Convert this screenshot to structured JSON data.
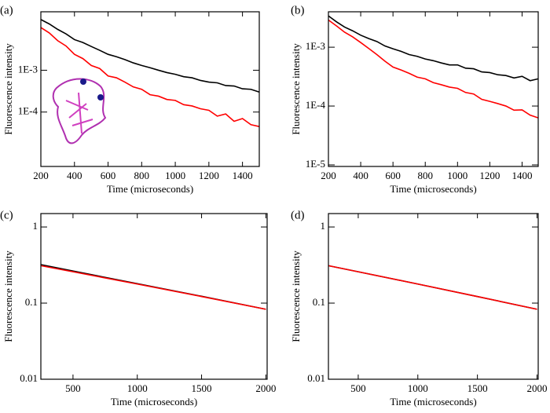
{
  "chart_data": [
    {
      "type": "line",
      "label": "(a)",
      "x_label": "Time (microseconds)",
      "y_label": "Fluorescence intensity",
      "log_y": true,
      "x": [
        200,
        250,
        300,
        350,
        400,
        450,
        500,
        550,
        600,
        650,
        700,
        750,
        800,
        850,
        900,
        950,
        1000,
        1050,
        1100,
        1150,
        1200,
        1250,
        1300,
        1350,
        1400,
        1450,
        1500
      ],
      "series": [
        {
          "color": "#000000",
          "values": [
            0.0163,
            0.0128,
            0.0095,
            0.0074,
            0.0054,
            0.0046,
            0.0037,
            0.003,
            0.0024,
            0.0021,
            0.0018,
            0.0015,
            0.0013,
            0.00115,
            0.001,
            0.00088,
            0.0008,
            0.0007,
            0.00066,
            0.00057,
            0.00052,
            0.0005,
            0.00043,
            0.00042,
            0.00036,
            0.00035,
            0.0003
          ]
        },
        {
          "color": "#ff0000",
          "values": [
            0.0105,
            0.0078,
            0.0051,
            0.0038,
            0.0024,
            0.0019,
            0.0013,
            0.0011,
            0.00073,
            0.00066,
            0.00052,
            0.0004,
            0.00035,
            0.00026,
            0.00024,
            0.0002,
            0.00019,
            0.00015,
            0.00014,
            0.00012,
            0.00011,
            8e-05,
            9e-05,
            6e-05,
            7e-05,
            5e-05,
            4.5e-05
          ]
        }
      ],
      "xlim": [
        200,
        1500
      ],
      "xticks": [
        200,
        400,
        600,
        800,
        1000,
        1200,
        1400
      ],
      "ylim": [
        5e-06,
        0.025
      ],
      "yticks": [
        {
          "value": 0.0001,
          "label": "1E-4"
        },
        {
          "value": 0.001,
          "label": "1E-3"
        }
      ]
    },
    {
      "type": "line",
      "label": "(b)",
      "x_label": "Time (microseconds)",
      "y_label": "Fluorescence intensity",
      "log_y": true,
      "x": [
        200,
        250,
        300,
        350,
        400,
        450,
        500,
        550,
        600,
        650,
        700,
        750,
        800,
        850,
        900,
        950,
        1000,
        1050,
        1100,
        1150,
        1200,
        1250,
        1300,
        1350,
        1400,
        1450,
        1500
      ],
      "series": [
        {
          "color": "#000000",
          "values": [
            0.0034,
            0.0027,
            0.0022,
            0.0019,
            0.0016,
            0.0014,
            0.00125,
            0.00105,
            0.00094,
            0.00085,
            0.00075,
            0.0007,
            0.00063,
            0.00059,
            0.00054,
            0.0005,
            0.0005,
            0.00044,
            0.00043,
            0.00038,
            0.00037,
            0.00034,
            0.00033,
            0.0003,
            0.00032,
            0.00027,
            0.00029
          ]
        },
        {
          "color": "#ff0000",
          "values": [
            0.0029,
            0.0023,
            0.0018,
            0.0015,
            0.0012,
            0.00095,
            0.00075,
            0.00058,
            0.00046,
            0.00041,
            0.00036,
            0.00031,
            0.00029,
            0.00025,
            0.00023,
            0.00021,
            0.0002,
            0.00017,
            0.00016,
            0.00013,
            0.00012,
            0.00011,
            0.0001,
            8.5e-05,
            8.6e-05,
            7e-05,
            6.3e-05
          ]
        }
      ],
      "xlim": [
        200,
        1500
      ],
      "xticks": [
        200,
        400,
        600,
        800,
        1000,
        1200,
        1400
      ],
      "ylim": [
        9.4e-06,
        0.004
      ],
      "yticks": [
        {
          "value": 1e-05,
          "label": "1E-5"
        },
        {
          "value": 0.0001,
          "label": "1E-4"
        },
        {
          "value": 0.001,
          "label": "1E-3"
        }
      ]
    },
    {
      "type": "line",
      "label": "(c)",
      "x_label": "Time (microseconds)",
      "y_label": "Fluorescence intensity",
      "log_y": true,
      "x": [
        250,
        500,
        1000,
        1500,
        2000
      ],
      "series": [
        {
          "color": "#000000",
          "values": [
            0.32,
            0.264,
            0.18,
            0.123,
            0.083
          ]
        },
        {
          "color": "#ff0000",
          "values": [
            0.31,
            0.258,
            0.178,
            0.122,
            0.083
          ]
        }
      ],
      "xlim": [
        250,
        2010
      ],
      "xticks": [
        500,
        1000,
        1500,
        2000
      ],
      "ylim": [
        0.01,
        1.5
      ],
      "yticks": [
        0.01,
        0.1,
        1
      ]
    },
    {
      "type": "line",
      "label": "(d)",
      "x_label": "Time (microseconds)",
      "y_label": "Fluorescence intensity",
      "log_y": true,
      "x": [
        250,
        500,
        1000,
        1500,
        2000
      ],
      "series": [
        {
          "color": "#000000",
          "values": [
            0.31,
            0.258,
            0.178,
            0.122,
            0.083
          ]
        },
        {
          "color": "#ff0000",
          "values": [
            0.31,
            0.258,
            0.178,
            0.122,
            0.083
          ]
        }
      ],
      "xlim": [
        250,
        2010
      ],
      "xticks": [
        500,
        1000,
        1500,
        2000
      ],
      "ylim": [
        0.01,
        1.5
      ],
      "yticks": [
        0.01,
        0.1,
        1
      ]
    }
  ]
}
